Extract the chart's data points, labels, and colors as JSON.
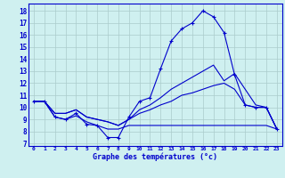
{
  "title": "Graphe des températures (°c)",
  "bg_color": "#cff0f0",
  "grid_color": "#aacccc",
  "line_color": "#0000cc",
  "x_ticks": [
    0,
    1,
    2,
    3,
    4,
    5,
    6,
    7,
    8,
    9,
    10,
    11,
    12,
    13,
    14,
    15,
    16,
    17,
    18,
    19,
    20,
    21,
    22,
    23
  ],
  "y_ticks": [
    7,
    8,
    9,
    10,
    11,
    12,
    13,
    14,
    15,
    16,
    17,
    18
  ],
  "ylim": [
    6.8,
    18.6
  ],
  "xlim": [
    -0.5,
    23.5
  ],
  "series": [
    {
      "x": [
        0,
        1,
        2,
        3,
        4,
        5,
        6,
        7,
        8,
        9,
        10,
        11,
        12,
        13,
        14,
        15,
        16,
        17,
        18,
        19,
        20,
        21,
        22,
        23
      ],
      "y": [
        10.5,
        10.5,
        9.2,
        9.0,
        9.5,
        8.6,
        8.5,
        7.5,
        7.5,
        9.2,
        10.5,
        10.8,
        13.2,
        15.5,
        16.5,
        17.0,
        18.0,
        17.5,
        16.2,
        12.7,
        10.2,
        10.0,
        10.0,
        8.2
      ],
      "marker": "+"
    },
    {
      "x": [
        0,
        1,
        2,
        3,
        4,
        5,
        6,
        7,
        8,
        9,
        10,
        11,
        12,
        13,
        14,
        15,
        16,
        17,
        18,
        19,
        20,
        21,
        22,
        23
      ],
      "y": [
        10.5,
        10.5,
        9.2,
        9.0,
        9.3,
        8.8,
        8.5,
        8.2,
        8.2,
        8.5,
        8.5,
        8.5,
        8.5,
        8.5,
        8.5,
        8.5,
        8.5,
        8.5,
        8.5,
        8.5,
        8.5,
        8.5,
        8.5,
        8.2
      ],
      "marker": null
    },
    {
      "x": [
        0,
        1,
        2,
        3,
        4,
        5,
        6,
        7,
        8,
        9,
        10,
        11,
        12,
        13,
        14,
        15,
        16,
        17,
        18,
        19,
        20,
        21,
        22,
        23
      ],
      "y": [
        10.5,
        10.5,
        9.5,
        9.5,
        9.8,
        9.2,
        9.0,
        8.8,
        8.5,
        9.0,
        9.5,
        9.8,
        10.2,
        10.5,
        11.0,
        11.2,
        11.5,
        11.8,
        12.0,
        11.5,
        10.2,
        10.0,
        10.0,
        8.2
      ],
      "marker": null
    },
    {
      "x": [
        0,
        1,
        2,
        3,
        4,
        5,
        6,
        7,
        8,
        9,
        10,
        11,
        12,
        13,
        14,
        15,
        16,
        17,
        18,
        19,
        20,
        21,
        22,
        23
      ],
      "y": [
        10.5,
        10.5,
        9.5,
        9.5,
        9.8,
        9.2,
        9.0,
        8.8,
        8.5,
        9.0,
        9.8,
        10.2,
        10.8,
        11.5,
        12.0,
        12.5,
        13.0,
        13.5,
        12.2,
        12.8,
        11.5,
        10.2,
        10.0,
        8.2
      ],
      "marker": null
    }
  ]
}
